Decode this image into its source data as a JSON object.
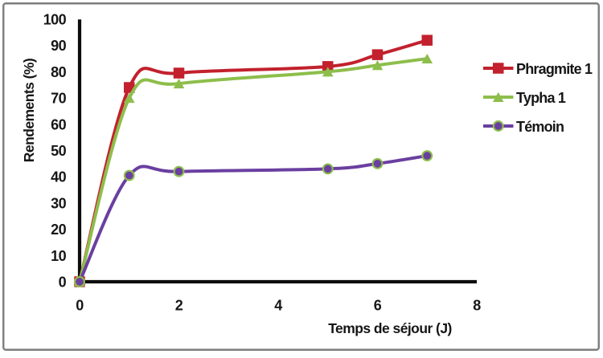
{
  "chart_data": {
    "type": "line",
    "line_style": "smooth",
    "x": [
      0,
      1,
      2,
      5,
      6,
      7
    ],
    "series": [
      {
        "name": "Phragmite 1",
        "values": [
          0,
          74,
          79.5,
          82,
          86.5,
          92
        ],
        "color": "#c2212d",
        "marker": "square",
        "marker_fill": "#c2212d",
        "marker_border": "#c2212d"
      },
      {
        "name": "Typha 1",
        "values": [
          0,
          70,
          75.5,
          80,
          82.5,
          85
        ],
        "color": "#8dbe4b",
        "marker": "triangle",
        "marker_fill": "#8dbe4b",
        "marker_border": "#8dbe4b"
      },
      {
        "name": "Témoin",
        "values": [
          0,
          40.5,
          42,
          43,
          45,
          48
        ],
        "color": "#6a3fa0",
        "marker": "circle",
        "marker_fill": "#6a3fa0",
        "marker_border": "#8dbe4b"
      }
    ],
    "xlabel": "Temps de séjour (J)",
    "ylabel": "Rendements (%)",
    "xlim": [
      0,
      8
    ],
    "ylim": [
      0,
      100
    ],
    "x_ticks": [
      0,
      2,
      4,
      6,
      8
    ],
    "y_ticks": [
      0,
      10,
      20,
      30,
      40,
      50,
      60,
      70,
      80,
      90,
      100
    ],
    "grid": false,
    "legend_position": "right"
  },
  "style": {
    "axis_color": "#0d0d0d",
    "text_color": "#161616",
    "frame_border_color": "#7d7d7d",
    "background_color": "#ffffff"
  }
}
